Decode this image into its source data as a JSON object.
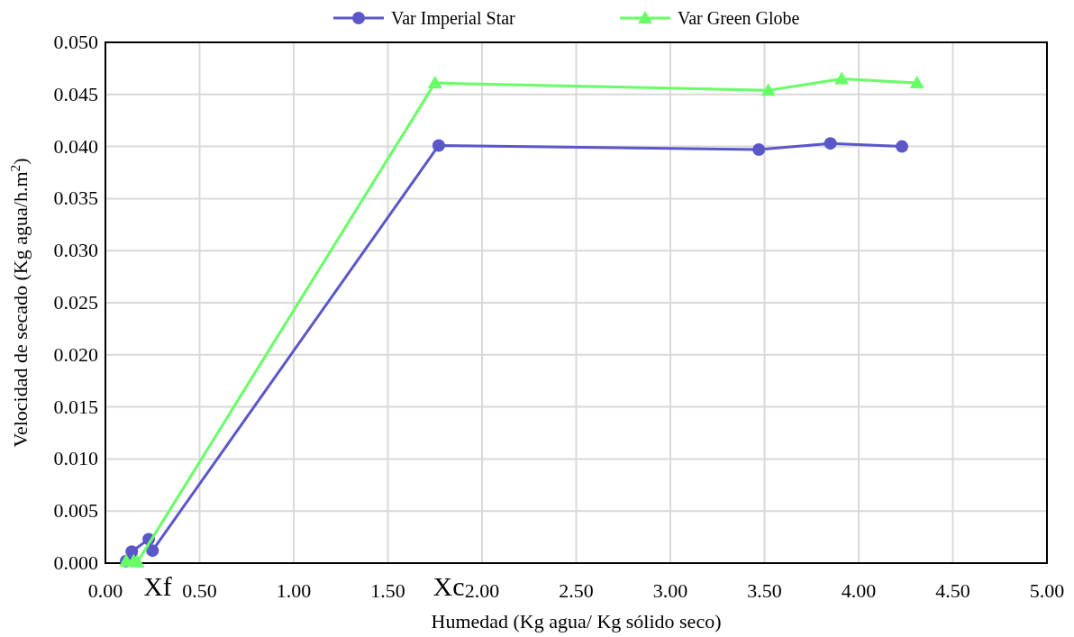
{
  "chart_data": {
    "type": "line",
    "xlabel": "Humedad (Kg agua/ Kg sólido seco)",
    "ylabel": "Velocidad de secado (Kg agua/h.m$^{2}$)",
    "xlim": [
      0,
      5
    ],
    "xticks": [
      {
        "value": 0,
        "label": "0.00"
      },
      {
        "value": 0.5,
        "label": "0.50"
      },
      {
        "value": 1,
        "label": "1.00"
      },
      {
        "value": 1.5,
        "label": "1.50"
      },
      {
        "value": 2,
        "label": "2.00"
      },
      {
        "value": 2.5,
        "label": "2.50"
      },
      {
        "value": 3,
        "label": "3.00"
      },
      {
        "value": 3.5,
        "label": "3.50"
      },
      {
        "value": 4,
        "label": "4.00"
      },
      {
        "value": 4.5,
        "label": "4.50"
      },
      {
        "value": 5,
        "label": "5.00"
      }
    ],
    "ylim": [
      0,
      0.05
    ],
    "yticks": [
      {
        "value": 0,
        "label": "0.000"
      },
      {
        "value": 0.005,
        "label": "0.005"
      },
      {
        "value": 0.01,
        "label": "0.010"
      },
      {
        "value": 0.015,
        "label": "0.015"
      },
      {
        "value": 0.02,
        "label": "0.020"
      },
      {
        "value": 0.025,
        "label": "0.025"
      },
      {
        "value": 0.03,
        "label": "0.030"
      },
      {
        "value": 0.035,
        "label": "0.035"
      },
      {
        "value": 0.04,
        "label": "0.040"
      },
      {
        "value": 0.045,
        "label": "0.045"
      },
      {
        "value": 0.05,
        "label": "0.050"
      }
    ],
    "grid": true,
    "legend": "top",
    "line_style": "solid",
    "series": [
      {
        "name": "Var Imperial Star",
        "color": "#5b57c9",
        "marker": "circle",
        "x": [
          0.11,
          0.14,
          0.23,
          0.25,
          1.77,
          3.47,
          3.85,
          4.23
        ],
        "values": [
          0.0002,
          0.0011,
          0.0023,
          0.0012,
          0.0401,
          0.0397,
          0.0403,
          0.04
        ]
      },
      {
        "name": "Var Green Globe",
        "color": "#66ff66",
        "marker": "triangle",
        "x": [
          0.11,
          0.15,
          0.17,
          1.75,
          3.52,
          3.91,
          4.31
        ],
        "values": [
          0.0002,
          0.0002,
          0.0001,
          0.0461,
          0.0454,
          0.0465,
          0.0461
        ]
      }
    ],
    "annotations": [
      "Xf",
      "Xc"
    ]
  }
}
